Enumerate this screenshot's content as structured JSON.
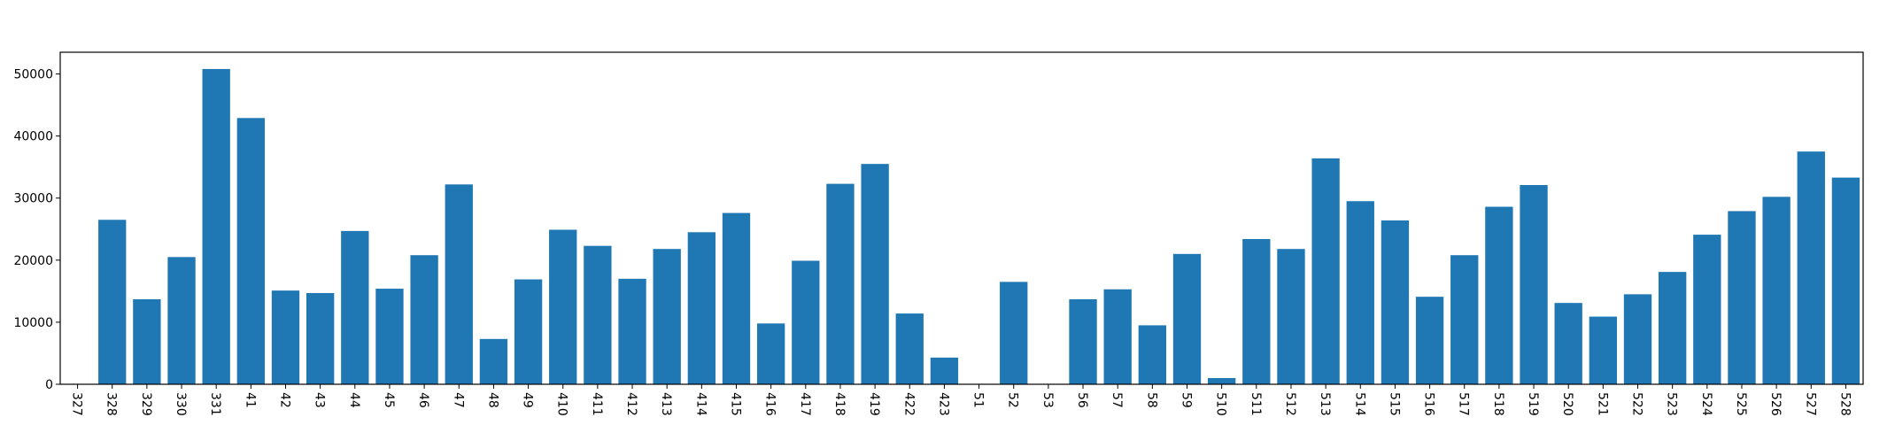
{
  "chart_data": {
    "type": "bar",
    "title": "",
    "xlabel": "",
    "ylabel": "",
    "ylim": [
      0,
      53500
    ],
    "yticks": [
      0,
      10000,
      20000,
      30000,
      40000,
      50000
    ],
    "ytick_labels": [
      "0",
      "10000",
      "20000",
      "30000",
      "40000",
      "50000"
    ],
    "grid": false,
    "legend": "none",
    "bar_color": "#1f77b4",
    "categories": [
      "327",
      "328",
      "329",
      "330",
      "331",
      "41",
      "42",
      "43",
      "44",
      "45",
      "46",
      "47",
      "48",
      "49",
      "410",
      "411",
      "412",
      "413",
      "414",
      "415",
      "416",
      "417",
      "418",
      "419",
      "422",
      "423",
      "51",
      "52",
      "53",
      "56",
      "57",
      "58",
      "59",
      "510",
      "511",
      "512",
      "513",
      "514",
      "515",
      "516",
      "517",
      "518",
      "519",
      "520",
      "521",
      "522",
      "523",
      "524",
      "525",
      "526",
      "527",
      "528"
    ],
    "values": [
      0,
      26500,
      13700,
      20500,
      50800,
      42900,
      15100,
      14700,
      24700,
      15400,
      20800,
      32200,
      7300,
      16900,
      24900,
      22300,
      17000,
      21800,
      24500,
      27600,
      9800,
      19900,
      32300,
      35500,
      11400,
      4300,
      0,
      16500,
      0,
      13700,
      15300,
      9500,
      21000,
      1000,
      23400,
      21800,
      36400,
      29500,
      26400,
      14100,
      20800,
      28600,
      32100,
      13100,
      10900,
      14500,
      18100,
      24100,
      27900,
      30200,
      37500,
      33300
    ]
  }
}
